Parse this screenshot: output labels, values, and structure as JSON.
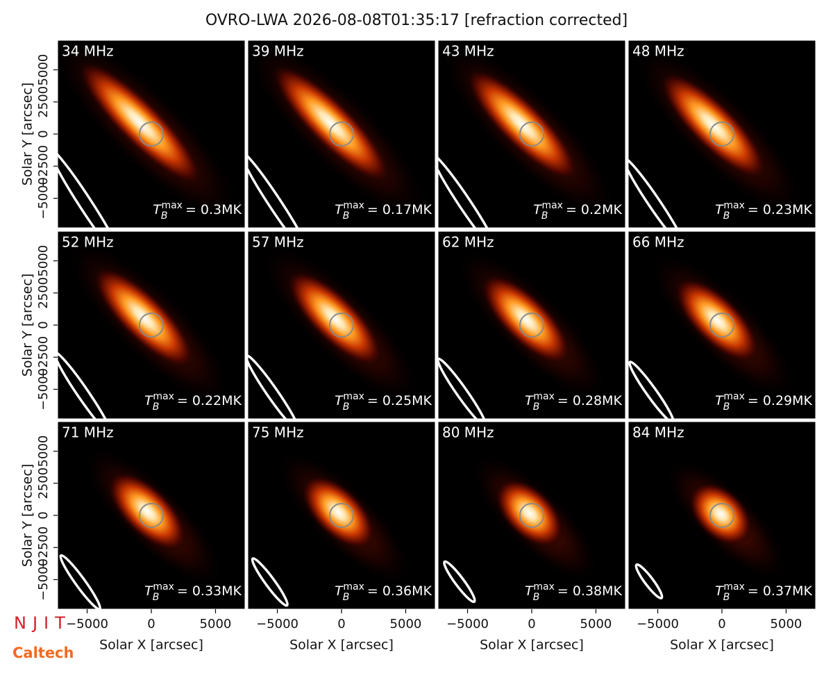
{
  "chart_data": {
    "type": "image-grid",
    "title": "OVRO-LWA 2026-08-08T01:35:17 [refraction corrected]",
    "xlabel": "Solar X [arcsec]",
    "ylabel": "Solar Y [arcsec]",
    "xlim": [
      -7300,
      7300
    ],
    "ylim": [
      -7300,
      7300
    ],
    "xticks": [
      {
        "value": -5000,
        "label": "−5000"
      },
      0,
      5000
    ],
    "yticks": [
      {
        "value": -5000,
        "label": "−5000"
      },
      {
        "value": -2500,
        "label": "−2500"
      },
      0,
      2500,
      5000
    ],
    "annotation_symbol": {
      "base": "T",
      "sub": "B",
      "sup": "max"
    },
    "panels": [
      {
        "title": "34 MHz",
        "annotation": "= 0.3MK"
      },
      {
        "title": "39 MHz",
        "annotation": "= 0.17MK"
      },
      {
        "title": "43 MHz",
        "annotation": "= 0.2MK"
      },
      {
        "title": "48 MHz",
        "annotation": "= 0.23MK"
      },
      {
        "title": "52 MHz",
        "annotation": "= 0.22MK"
      },
      {
        "title": "57 MHz",
        "annotation": "= 0.25MK"
      },
      {
        "title": "62 MHz",
        "annotation": "= 0.28MK"
      },
      {
        "title": "66 MHz",
        "annotation": "= 0.29MK"
      },
      {
        "title": "71 MHz",
        "annotation": "= 0.33MK"
      },
      {
        "title": "75 MHz",
        "annotation": "= 0.36MK"
      },
      {
        "title": "80 MHz",
        "annotation": "= 0.38MK"
      },
      {
        "title": "84 MHz",
        "annotation": "= 0.37MK"
      }
    ]
  },
  "logos": {
    "top": "NJIT",
    "bottom": "Caltech"
  }
}
